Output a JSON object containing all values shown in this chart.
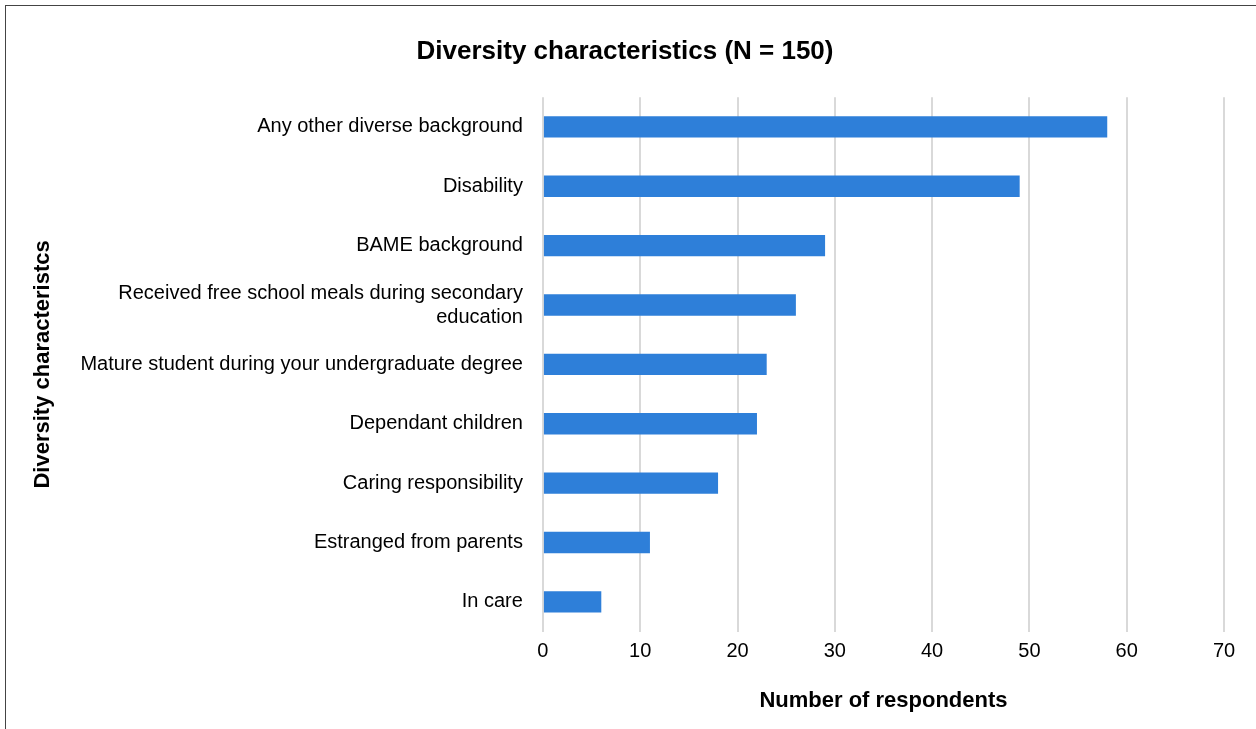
{
  "chart_data": {
    "type": "bar",
    "orientation": "horizontal",
    "title": "Diversity characteristics (N = 150)",
    "xlabel": "Number of respondents",
    "ylabel": "Diversity characteristcs",
    "categories": [
      "Any other diverse background",
      "Disability",
      "BAME background",
      "Received free school meals during secondary education",
      "Mature student during your undergraduate degree",
      "Dependant children",
      "Caring responsibility",
      "Estranged from parents",
      "In care"
    ],
    "values": [
      58,
      49,
      29,
      26,
      23,
      22,
      18,
      11,
      6
    ],
    "color": "#2e7fd9",
    "xlim": [
      0,
      70
    ],
    "xticks": [
      0,
      10,
      20,
      30,
      40,
      50,
      60,
      70
    ],
    "grid": "x",
    "legend": false
  }
}
